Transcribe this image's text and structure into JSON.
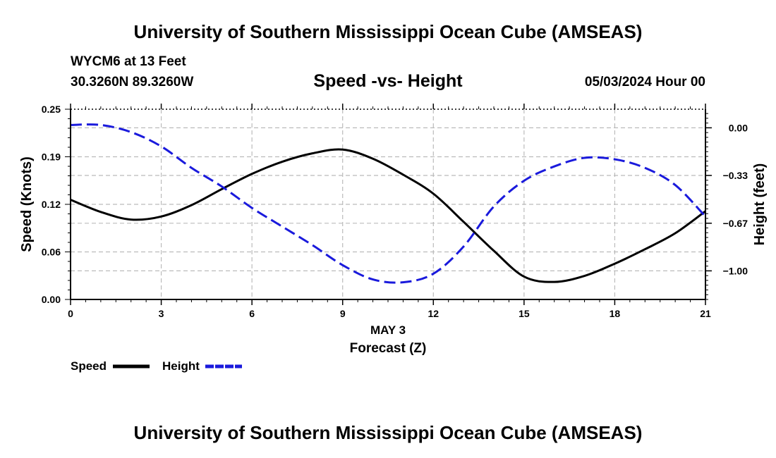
{
  "header": {
    "title": "University of Southern Mississippi Ocean Cube (AMSEAS)",
    "station": "WYCM6 at 13 Feet",
    "coords": "30.3260N  89.3260W",
    "subtitle": "Speed -vs- Height",
    "date": "05/03/2024 Hour 00"
  },
  "footer": {
    "title": "University of Southern Mississippi Ocean Cube (AMSEAS)"
  },
  "chart_data": {
    "type": "line",
    "title": "Speed -vs- Height",
    "xlabel": "Forecast (Z)",
    "xlabel_date": "MAY 3",
    "ylabel_left": "Speed (Knots)",
    "ylabel_right": "Height (feet)",
    "xlim": [
      0,
      21
    ],
    "ylim_left": [
      0,
      0.25
    ],
    "ylim_right": [
      -1.2,
      0.13
    ],
    "grid": true,
    "x_ticks": [
      0,
      3,
      6,
      9,
      12,
      15,
      18,
      21
    ],
    "x_tick_labels": [
      "0",
      "3",
      "6",
      "9",
      "12",
      "15",
      "18",
      "21"
    ],
    "y_left_ticks": [
      0,
      0.0625,
      0.125,
      0.1875,
      0.25
    ],
    "y_left_tick_labels": [
      "0.00",
      "0.06",
      "0.12",
      "0.19",
      "0.25"
    ],
    "y_right_ticks": [
      0,
      -0.333,
      -0.667,
      -1.0
    ],
    "y_right_tick_labels": [
      "0.00",
      "−0.33",
      "−0.67",
      "−1.00"
    ],
    "legend": {
      "position": "bottom-left",
      "entries": [
        "Speed",
        "Height"
      ]
    },
    "series": [
      {
        "name": "Speed",
        "axis": "left",
        "color": "#000000",
        "style": "solid",
        "x": [
          0,
          1,
          2,
          3,
          4,
          5,
          6,
          7,
          8,
          9,
          10,
          11,
          12,
          13,
          14,
          15,
          16,
          17,
          18,
          19,
          20,
          21
        ],
        "y": [
          0.131,
          0.115,
          0.105,
          0.109,
          0.124,
          0.145,
          0.165,
          0.181,
          0.192,
          0.197,
          0.185,
          0.164,
          0.139,
          0.102,
          0.064,
          0.03,
          0.023,
          0.031,
          0.047,
          0.066,
          0.087,
          0.116
        ]
      },
      {
        "name": "Height",
        "axis": "right",
        "color": "#1a1adc",
        "style": "dashed",
        "x": [
          0,
          1,
          2,
          3,
          4,
          5,
          6,
          7,
          8,
          9,
          10,
          11,
          12,
          13,
          14,
          15,
          16,
          17,
          18,
          19,
          20,
          21
        ],
        "y": [
          0.02,
          0.02,
          -0.03,
          -0.13,
          -0.28,
          -0.41,
          -0.56,
          -0.69,
          -0.82,
          -0.96,
          -1.06,
          -1.08,
          -1.02,
          -0.83,
          -0.55,
          -0.37,
          -0.27,
          -0.21,
          -0.22,
          -0.28,
          -0.4,
          -0.62
        ]
      }
    ]
  }
}
